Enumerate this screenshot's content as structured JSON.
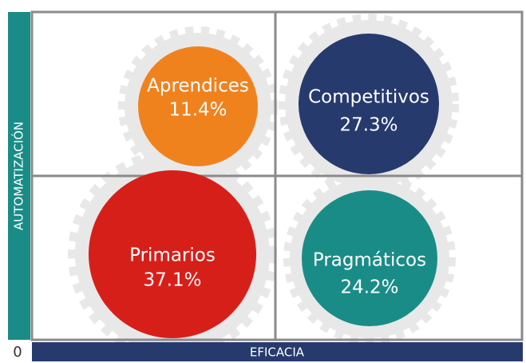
{
  "axes": {
    "y_label": "AUTOMATIZACIÓN",
    "x_label": "EFICACIA",
    "origin": "0"
  },
  "nodes": [
    {
      "label": "Aprendices",
      "value": "11.4%"
    },
    {
      "label": "Competitivos",
      "value": "27.3%"
    },
    {
      "label": "Primarios",
      "value": "37.1%"
    },
    {
      "label": "Pragmáticos",
      "value": "24.2%"
    }
  ]
}
